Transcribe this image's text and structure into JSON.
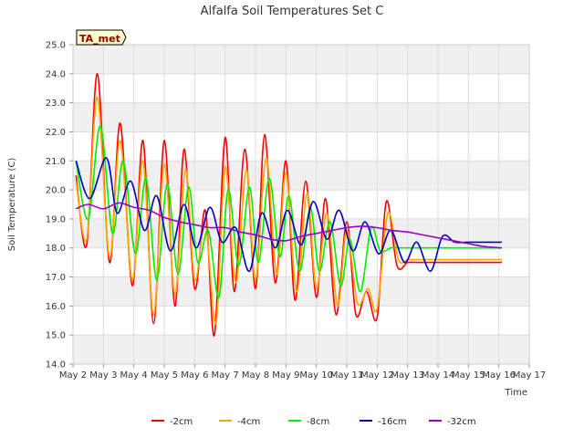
{
  "chart_data": {
    "type": "line",
    "title": "Alfalfa Soil Temperatures Set C",
    "xlabel": "Time",
    "ylabel": "Soil Temperature (C)",
    "badge": "TA_met",
    "xlim": [
      2,
      17
    ],
    "ylim": [
      14.0,
      25.0
    ],
    "x_ticks": [
      {
        "value": 2,
        "label": "May 2"
      },
      {
        "value": 3,
        "label": "May 3"
      },
      {
        "value": 4,
        "label": "May 4"
      },
      {
        "value": 5,
        "label": "May 5"
      },
      {
        "value": 6,
        "label": "May 6"
      },
      {
        "value": 7,
        "label": "May 7"
      },
      {
        "value": 8,
        "label": "May 8"
      },
      {
        "value": 9,
        "label": "May 9"
      },
      {
        "value": 10,
        "label": "May 10"
      },
      {
        "value": 11,
        "label": "May 11"
      },
      {
        "value": 12,
        "label": "May 12"
      },
      {
        "value": 13,
        "label": "May 13"
      },
      {
        "value": 14,
        "label": "May 14"
      },
      {
        "value": 15,
        "label": "May 15"
      },
      {
        "value": 16,
        "label": "May 16"
      },
      {
        "value": 17,
        "label": "May 17"
      }
    ],
    "y_ticks": [
      {
        "value": 14,
        "label": "14.0"
      },
      {
        "value": 15,
        "label": "15.0"
      },
      {
        "value": 16,
        "label": "16.0"
      },
      {
        "value": 17,
        "label": "17.0"
      },
      {
        "value": 18,
        "label": "18.0"
      },
      {
        "value": 19,
        "label": "19.0"
      },
      {
        "value": 20,
        "label": "20.0"
      },
      {
        "value": 21,
        "label": "21.0"
      },
      {
        "value": 22,
        "label": "22.0"
      },
      {
        "value": 23,
        "label": "23.0"
      },
      {
        "value": 24,
        "label": "24.0"
      },
      {
        "value": 25,
        "label": "25.0"
      }
    ],
    "grid": true,
    "legend_position": "bottom",
    "series": [
      {
        "name": "-2cm",
        "color": "#ff0000",
        "x": [
          2.1,
          2.45,
          2.8,
          3.2,
          3.55,
          3.95,
          4.3,
          4.65,
          5.0,
          5.35,
          5.65,
          6.0,
          6.35,
          6.65,
          7.0,
          7.3,
          7.65,
          8.0,
          8.3,
          8.65,
          9.0,
          9.3,
          9.65,
          10.0,
          10.3,
          10.65,
          11.0,
          11.3,
          11.65,
          12.0,
          12.3,
          12.65,
          13.0,
          13.3,
          13.65,
          14.0,
          14.3,
          14.65,
          14.85,
          15.2,
          15.55,
          15.95,
          16.1
        ],
        "y": [
          20.5,
          18.1,
          24.0,
          17.5,
          22.3,
          16.7,
          21.7,
          15.4,
          21.7,
          16.0,
          21.4,
          16.6,
          19.3,
          15.0,
          21.8,
          16.5,
          21.4,
          16.6,
          21.9,
          16.8,
          21.0,
          16.2,
          20.3,
          16.3,
          19.7,
          15.7,
          18.9,
          15.7,
          16.5,
          15.6,
          19.6,
          17.4,
          17.5,
          17.5,
          17.5,
          17.5,
          17.5,
          17.5,
          17.5,
          17.5,
          17.5,
          17.5,
          17.5
        ]
      },
      {
        "name": "-4cm",
        "color": "#ffa500",
        "x": [
          2.1,
          2.45,
          2.8,
          3.2,
          3.55,
          3.95,
          4.3,
          4.65,
          5.0,
          5.35,
          5.7,
          6.0,
          6.35,
          6.7,
          7.0,
          7.35,
          7.7,
          8.0,
          8.35,
          8.7,
          9.0,
          9.35,
          9.7,
          10.0,
          10.35,
          10.7,
          11.0,
          11.35,
          11.7,
          12.0,
          12.35,
          12.7,
          13.0,
          13.35,
          13.7,
          14.0,
          14.35,
          14.7,
          15.0,
          15.35,
          15.6,
          15.9,
          16.1
        ],
        "y": [
          20.3,
          18.3,
          23.2,
          17.7,
          21.7,
          16.9,
          21.0,
          15.7,
          20.9,
          16.4,
          20.7,
          16.9,
          18.8,
          15.4,
          20.8,
          16.8,
          20.7,
          16.9,
          21.1,
          17.1,
          20.6,
          16.5,
          19.9,
          16.6,
          19.2,
          16.0,
          18.6,
          16.1,
          16.6,
          15.9,
          19.2,
          17.6,
          17.6,
          17.6,
          17.6,
          17.6,
          17.6,
          17.6,
          17.6,
          17.6,
          17.6,
          17.6,
          17.6
        ]
      },
      {
        "name": "-8cm",
        "color": "#00ee00",
        "x": [
          2.1,
          2.5,
          2.9,
          3.3,
          3.65,
          4.05,
          4.4,
          4.75,
          5.1,
          5.45,
          5.8,
          6.1,
          6.45,
          6.8,
          7.1,
          7.45,
          7.8,
          8.1,
          8.45,
          8.8,
          9.1,
          9.45,
          9.8,
          10.1,
          10.45,
          10.8,
          11.1,
          11.45,
          11.8,
          12.1,
          12.45,
          12.8,
          13.1,
          13.45,
          13.8,
          14.1,
          14.45,
          14.8,
          15.1,
          15.45,
          15.7,
          16.0,
          16.1
        ],
        "y": [
          21.0,
          19.0,
          22.2,
          18.5,
          21.0,
          17.8,
          20.4,
          16.9,
          20.2,
          17.1,
          20.1,
          17.5,
          18.6,
          16.3,
          20.0,
          17.4,
          20.1,
          17.5,
          20.4,
          17.7,
          19.8,
          17.2,
          19.4,
          17.2,
          18.9,
          16.7,
          18.3,
          16.5,
          18.7,
          17.9,
          18.0,
          18.0,
          18.0,
          18.0,
          18.0,
          18.0,
          18.0,
          18.0,
          18.0,
          18.0,
          18.0,
          18.0,
          18.0
        ]
      },
      {
        "name": "-16cm",
        "color": "#0000cc",
        "x": [
          2.1,
          2.55,
          3.1,
          3.45,
          3.9,
          4.35,
          4.75,
          5.2,
          5.65,
          6.05,
          6.5,
          6.9,
          7.35,
          7.8,
          8.2,
          8.65,
          9.05,
          9.5,
          9.9,
          10.35,
          10.75,
          11.2,
          11.6,
          12.05,
          12.45,
          12.9,
          13.3,
          13.75,
          14.15,
          14.55,
          14.95,
          15.3,
          15.6,
          15.9,
          16.1
        ],
        "y": [
          21.0,
          19.7,
          21.1,
          19.2,
          20.3,
          18.6,
          19.8,
          17.9,
          19.5,
          18.0,
          19.4,
          18.2,
          18.7,
          17.2,
          19.2,
          18.0,
          19.3,
          18.1,
          19.6,
          18.3,
          19.3,
          17.9,
          18.9,
          17.8,
          18.6,
          17.5,
          18.2,
          17.2,
          18.4,
          18.2,
          18.2,
          18.2,
          18.2,
          18.2,
          18.2
        ]
      },
      {
        "name": "-32cm",
        "color": "#9900cc",
        "x": [
          2.1,
          2.5,
          3.0,
          3.5,
          4.0,
          4.5,
          5.0,
          5.5,
          6.0,
          6.5,
          7.0,
          7.5,
          8.0,
          8.5,
          9.0,
          9.5,
          10.0,
          10.5,
          11.0,
          11.5,
          12.0,
          12.5,
          13.0,
          13.5,
          14.0,
          14.5,
          15.0,
          15.5,
          16.1
        ],
        "y": [
          19.35,
          19.5,
          19.35,
          19.55,
          19.4,
          19.3,
          19.05,
          18.9,
          18.8,
          18.7,
          18.7,
          18.55,
          18.45,
          18.3,
          18.25,
          18.4,
          18.5,
          18.6,
          18.7,
          18.75,
          18.7,
          18.6,
          18.55,
          18.45,
          18.35,
          18.25,
          18.15,
          18.05,
          18.0
        ]
      }
    ]
  }
}
